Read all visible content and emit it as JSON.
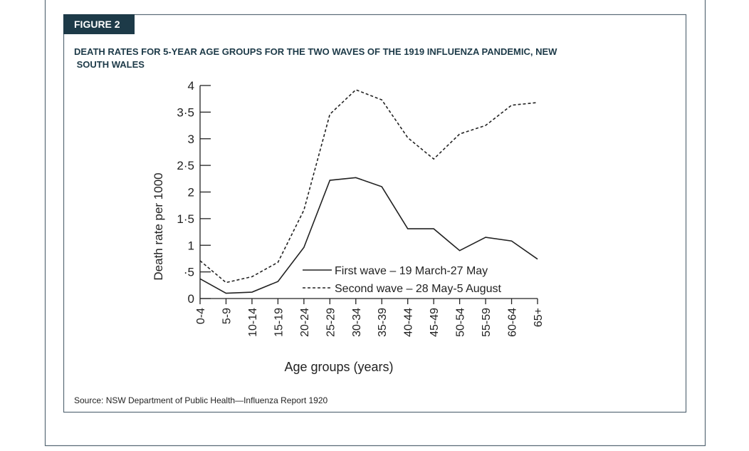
{
  "figure_label": "FIGURE 2",
  "source": "Source: NSW Department of Public Health—Influenza Report 1920",
  "chart_data": {
    "type": "line",
    "title": "DEATH RATES FOR 5-YEAR AGE GROUPS FOR THE TWO WAVES OF THE 1919 INFLUENZA PANDEMIC, NEW SOUTH WALES",
    "y_label": "Death rate per 1000",
    "x_label": "Age groups (years)",
    "categories": [
      "0-4",
      "5-9",
      "10-14",
      "15-19",
      "20-24",
      "25-29",
      "30-34",
      "35-39",
      "40-44",
      "45-49",
      "50-54",
      "55-59",
      "60-64",
      "65+"
    ],
    "series": [
      {
        "name": "First wave – 19 March-27 May",
        "color": "#222222",
        "dash": "solid",
        "values": [
          0.37,
          0.1,
          0.12,
          0.32,
          0.96,
          2.22,
          2.27,
          2.1,
          1.31,
          1.31,
          0.9,
          1.15,
          1.08,
          0.74
        ]
      },
      {
        "name": "Second wave – 28 May-5 August",
        "color": "#222222",
        "dash": "dashed",
        "values": [
          0.71,
          0.3,
          0.41,
          0.68,
          1.66,
          3.46,
          3.92,
          3.73,
          3.02,
          2.62,
          3.09,
          3.25,
          3.63,
          3.68
        ]
      }
    ],
    "ylim": [
      0,
      4
    ],
    "yticks": [
      0,
      {
        "value": 0.5,
        "label": "·5"
      },
      1,
      {
        "value": 1.5,
        "label": "1·5"
      },
      2,
      {
        "value": 2.5,
        "label": "2·5"
      },
      3,
      {
        "value": 3.5,
        "label": "3·5"
      },
      4
    ]
  }
}
